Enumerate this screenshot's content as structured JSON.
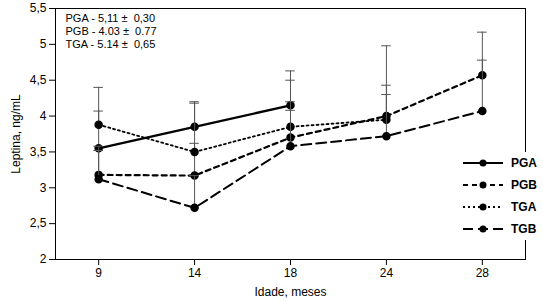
{
  "chart_data": {
    "type": "line",
    "x_label": "Idade, meses",
    "y_label": "Leptina, ng/mL",
    "categories": [
      "9",
      "14",
      "18",
      "24",
      "28"
    ],
    "annotations": [
      "PGA - 5,11 ±  0,30",
      "PGB - 4.03 ±  0.77",
      "TGA - 5.14 ±  0,65"
    ],
    "ylim": [
      2,
      5.5
    ],
    "yticks": [
      2,
      {
        "value": 2.5,
        "label": "2,5"
      },
      3,
      {
        "value": 3.5,
        "label": "3,5"
      },
      4,
      {
        "value": 4.5,
        "label": "4,5"
      },
      5,
      {
        "value": 5.5,
        "label": "5,5"
      }
    ],
    "grid": false,
    "legend": "right",
    "series": [
      {
        "name": "PGA",
        "color": "#000000",
        "line_style": "solid",
        "marker": "circle",
        "values": [
          3.55,
          3.85,
          4.15,
          null,
          null
        ],
        "error": [
          0.52,
          0.35,
          0.48,
          null,
          null
        ]
      },
      {
        "name": "PGB",
        "color": "#000000",
        "line_style": "dashed",
        "marker": "circle",
        "values": [
          3.18,
          3.17,
          3.7,
          4.0,
          4.57
        ],
        "error": [
          0.4,
          0.45,
          0.8,
          0.98,
          0.6
        ]
      },
      {
        "name": "TGA",
        "color": "#000000",
        "line_style": "dotted",
        "marker": "circle",
        "values": [
          3.88,
          3.5,
          3.85,
          3.95,
          null
        ],
        "error": [
          0.52,
          0.68,
          0.35,
          0.35,
          null
        ]
      },
      {
        "name": "TGB",
        "color": "#000000",
        "line_style": "longdash",
        "marker": "circle",
        "values": [
          3.12,
          2.72,
          3.58,
          3.72,
          4.07
        ],
        "error": [
          0.4,
          0.45,
          0.5,
          0.71,
          0.71
        ]
      }
    ]
  }
}
